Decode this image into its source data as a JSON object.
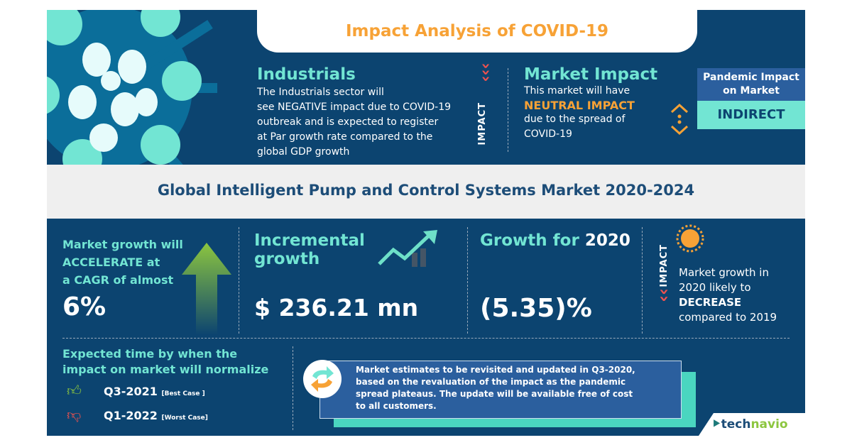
{
  "header": {
    "title": "Impact Analysis of COVID-19"
  },
  "industrials": {
    "heading": "Industrials",
    "lines": [
      "The Industrials sector will",
      "see NEGATIVE impact due to COVID-19",
      "outbreak and is expected to register",
      "at Par growth rate compared to the",
      "global GDP growth"
    ]
  },
  "impact_label": "IMPACT",
  "market_impact": {
    "heading": "Market Impact",
    "line1": "This market will have",
    "highlight": "NEUTRAL IMPACT",
    "line3": "due to the spread of",
    "line4": "COVID-19"
  },
  "pandemic": {
    "label": "Pandemic Impact on Market",
    "value": "INDIRECT"
  },
  "market_title": "Global Intelligent Pump and Control Systems Market 2020-2024",
  "cagr": {
    "line1": "Market growth will",
    "line2": "ACCELERATE at",
    "line3": "a CAGR of almost",
    "value": "6%"
  },
  "incremental": {
    "heading": "Incremental growth",
    "value": "$ 236.21 mn"
  },
  "growth2020": {
    "heading": "Growth for ",
    "year": "2020",
    "value": "(5.35)%"
  },
  "growth_impact": {
    "label": "IMPACT",
    "line1": "Market growth in",
    "line2": "2020 likely to",
    "highlight": "DECREASE",
    "line4": "compared to 2019"
  },
  "normalize": {
    "heading1": "Expected time by when the",
    "heading2": "impact on market will normalize",
    "best": "Q3-2021",
    "best_note": "[Best Case ]",
    "worst": "Q1-2022",
    "worst_note": "[Worst Case]"
  },
  "note": {
    "lines": [
      "Market estimates to be revisited and updated in Q3-2020,",
      "based on the revaluation of the impact as the pandemic",
      "spread plateaus. The update will be available free of cost",
      "to all customers."
    ]
  },
  "brand": {
    "tech": "tech",
    "navio": "navio"
  },
  "colors": {
    "navy": "#0c4470",
    "teal": "#72e5d3",
    "orange": "#f7a236",
    "red": "#f0524f",
    "green": "#8cc63f"
  }
}
